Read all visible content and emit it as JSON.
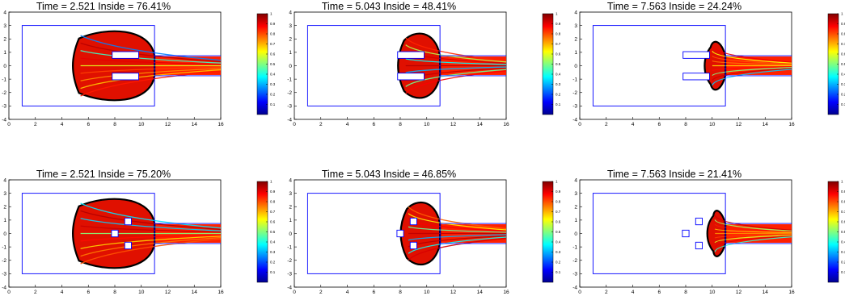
{
  "chart_data": [
    {
      "type": "heatmap",
      "title": "Time =   2.521  Inside = 76.41%",
      "domain": "rectangle-with-channel",
      "time": 2.521,
      "inside_percent": 76.41,
      "xlim": [
        0,
        16
      ],
      "ylim": [
        -4,
        4
      ],
      "x_ticks": [
        "0",
        "2",
        "4",
        "6",
        "8",
        "10",
        "12",
        "14",
        "16"
      ],
      "y_ticks": [
        "4",
        "3",
        "2",
        "1",
        "0",
        "-1",
        "-2",
        "-3",
        "-4"
      ],
      "colorbar": {
        "range": [
          0,
          1
        ],
        "ticks": [
          "1",
          "0.9",
          "0.8",
          "0.7",
          "0.6",
          "0.5",
          "0.4",
          "0.3",
          "0.2",
          "0.1"
        ],
        "colormap": "jet"
      },
      "cloud": {
        "front_x": 4.8,
        "half_height": 2.9
      }
    },
    {
      "type": "heatmap",
      "title": "Time =   5.043  Inside = 48.41%",
      "domain": "rectangle-with-channel",
      "time": 5.043,
      "inside_percent": 48.41,
      "xlim": [
        0,
        16
      ],
      "ylim": [
        -4,
        4
      ],
      "x_ticks": [
        "0",
        "2",
        "4",
        "6",
        "8",
        "10",
        "12",
        "14",
        "16"
      ],
      "y_ticks": [
        "4",
        "3",
        "2",
        "1",
        "0",
        "-1",
        "-2",
        "-3",
        "-4"
      ],
      "colorbar": {
        "range": [
          0,
          1
        ],
        "ticks": [
          "1",
          "0.9",
          "0.8",
          "0.7",
          "0.6",
          "0.5",
          "0.4",
          "0.3",
          "0.2",
          "0.1"
        ],
        "colormap": "jet"
      },
      "cloud": {
        "front_x": 7.8,
        "half_height": 2.7
      }
    },
    {
      "type": "heatmap",
      "title": "Time =   7.563  Inside = 24.24%",
      "domain": "rectangle-with-channel",
      "time": 7.563,
      "inside_percent": 24.24,
      "xlim": [
        0,
        16
      ],
      "ylim": [
        -4,
        4
      ],
      "x_ticks": [
        "0",
        "2",
        "4",
        "6",
        "8",
        "10",
        "12",
        "14",
        "16"
      ],
      "y_ticks": [
        "4",
        "3",
        "2",
        "1",
        "0",
        "-1",
        "-2",
        "-3",
        "-4"
      ],
      "colorbar": {
        "range": [
          0,
          1
        ],
        "ticks": [
          "1",
          "0.9",
          "0.8",
          "0.7",
          "0.6",
          "0.5",
          "0.4",
          "0.3",
          "0.2",
          "0.1"
        ],
        "colormap": "jet"
      },
      "cloud": {
        "front_x": 9.4,
        "half_height": 2.0
      }
    },
    {
      "type": "heatmap",
      "title": "Time =   2.521  Inside = 75.20%",
      "domain": "rectangle-with-channel",
      "time": 2.521,
      "inside_percent": 75.2,
      "xlim": [
        0,
        16
      ],
      "ylim": [
        -4,
        4
      ],
      "x_ticks": [
        "0",
        "2",
        "4",
        "6",
        "8",
        "10",
        "12",
        "14",
        "16"
      ],
      "y_ticks": [
        "4",
        "3",
        "2",
        "1",
        "0",
        "-1",
        "-2",
        "-3",
        "-4"
      ],
      "colorbar": {
        "range": [
          0,
          1
        ],
        "ticks": [
          "1",
          "0.9",
          "0.8",
          "0.7",
          "0.6",
          "0.5",
          "0.4",
          "0.3",
          "0.2",
          "0.1"
        ],
        "colormap": "jet"
      },
      "cloud": {
        "front_x": 4.8,
        "half_height": 2.9
      }
    },
    {
      "type": "heatmap",
      "title": "Time =   5.043  Inside = 46.85%",
      "domain": "rectangle-with-channel",
      "time": 5.043,
      "inside_percent": 46.85,
      "xlim": [
        0,
        16
      ],
      "ylim": [
        -4,
        4
      ],
      "x_ticks": [
        "0",
        "2",
        "4",
        "6",
        "8",
        "10",
        "12",
        "14",
        "16"
      ],
      "y_ticks": [
        "4",
        "3",
        "2",
        "1",
        "0",
        "-1",
        "-2",
        "-3",
        "-4"
      ],
      "colorbar": {
        "range": [
          0,
          1
        ],
        "ticks": [
          "1",
          "0.9",
          "0.8",
          "0.7",
          "0.6",
          "0.5",
          "0.4",
          "0.3",
          "0.2",
          "0.1"
        ],
        "colormap": "jet"
      },
      "cloud": {
        "front_x": 8.0,
        "half_height": 2.6
      }
    },
    {
      "type": "heatmap",
      "title": "Time =   7.563  Inside = 21.41%",
      "domain": "rectangle-with-channel",
      "time": 7.563,
      "inside_percent": 21.41,
      "xlim": [
        0,
        16
      ],
      "ylim": [
        -4,
        4
      ],
      "x_ticks": [
        "0",
        "2",
        "4",
        "6",
        "8",
        "10",
        "12",
        "14",
        "16"
      ],
      "y_ticks": [
        "4",
        "3",
        "2",
        "1",
        "0",
        "-1",
        "-2",
        "-3",
        "-4"
      ],
      "colorbar": {
        "range": [
          0,
          1
        ],
        "ticks": [
          "1",
          "0.9",
          "0.8",
          "0.7",
          "0.6",
          "0.5",
          "0.4",
          "0.3",
          "0.2",
          "0.1"
        ],
        "colormap": "jet"
      },
      "cloud": {
        "front_x": 9.6,
        "half_height": 1.9
      }
    }
  ],
  "geometry": {
    "room": {
      "x1": 1,
      "x2": 11,
      "y1": -3,
      "y2": 3
    },
    "channel": {
      "x1": 11,
      "x2": 16,
      "y1": -0.75,
      "y2": 0.75
    },
    "top_row_obstacles": [
      {
        "x1": 7.8,
        "x2": 9.8,
        "y1": 0.55,
        "y2": 1.05
      },
      {
        "x1": 7.8,
        "x2": 9.8,
        "y1": -1.05,
        "y2": -0.55
      }
    ],
    "bottom_row_obstacles": [
      {
        "x1": 8.75,
        "x2": 9.25,
        "y1": 0.65,
        "y2": 1.15
      },
      {
        "x1": 7.75,
        "x2": 8.25,
        "y1": -0.25,
        "y2": 0.25
      },
      {
        "x1": 8.75,
        "x2": 9.25,
        "y1": -1.15,
        "y2": -0.65
      }
    ]
  },
  "colors": {
    "domain_outline": "#0000ff",
    "front_outline": "#000000",
    "dense": "#ff0000",
    "background": "#ffffff"
  }
}
